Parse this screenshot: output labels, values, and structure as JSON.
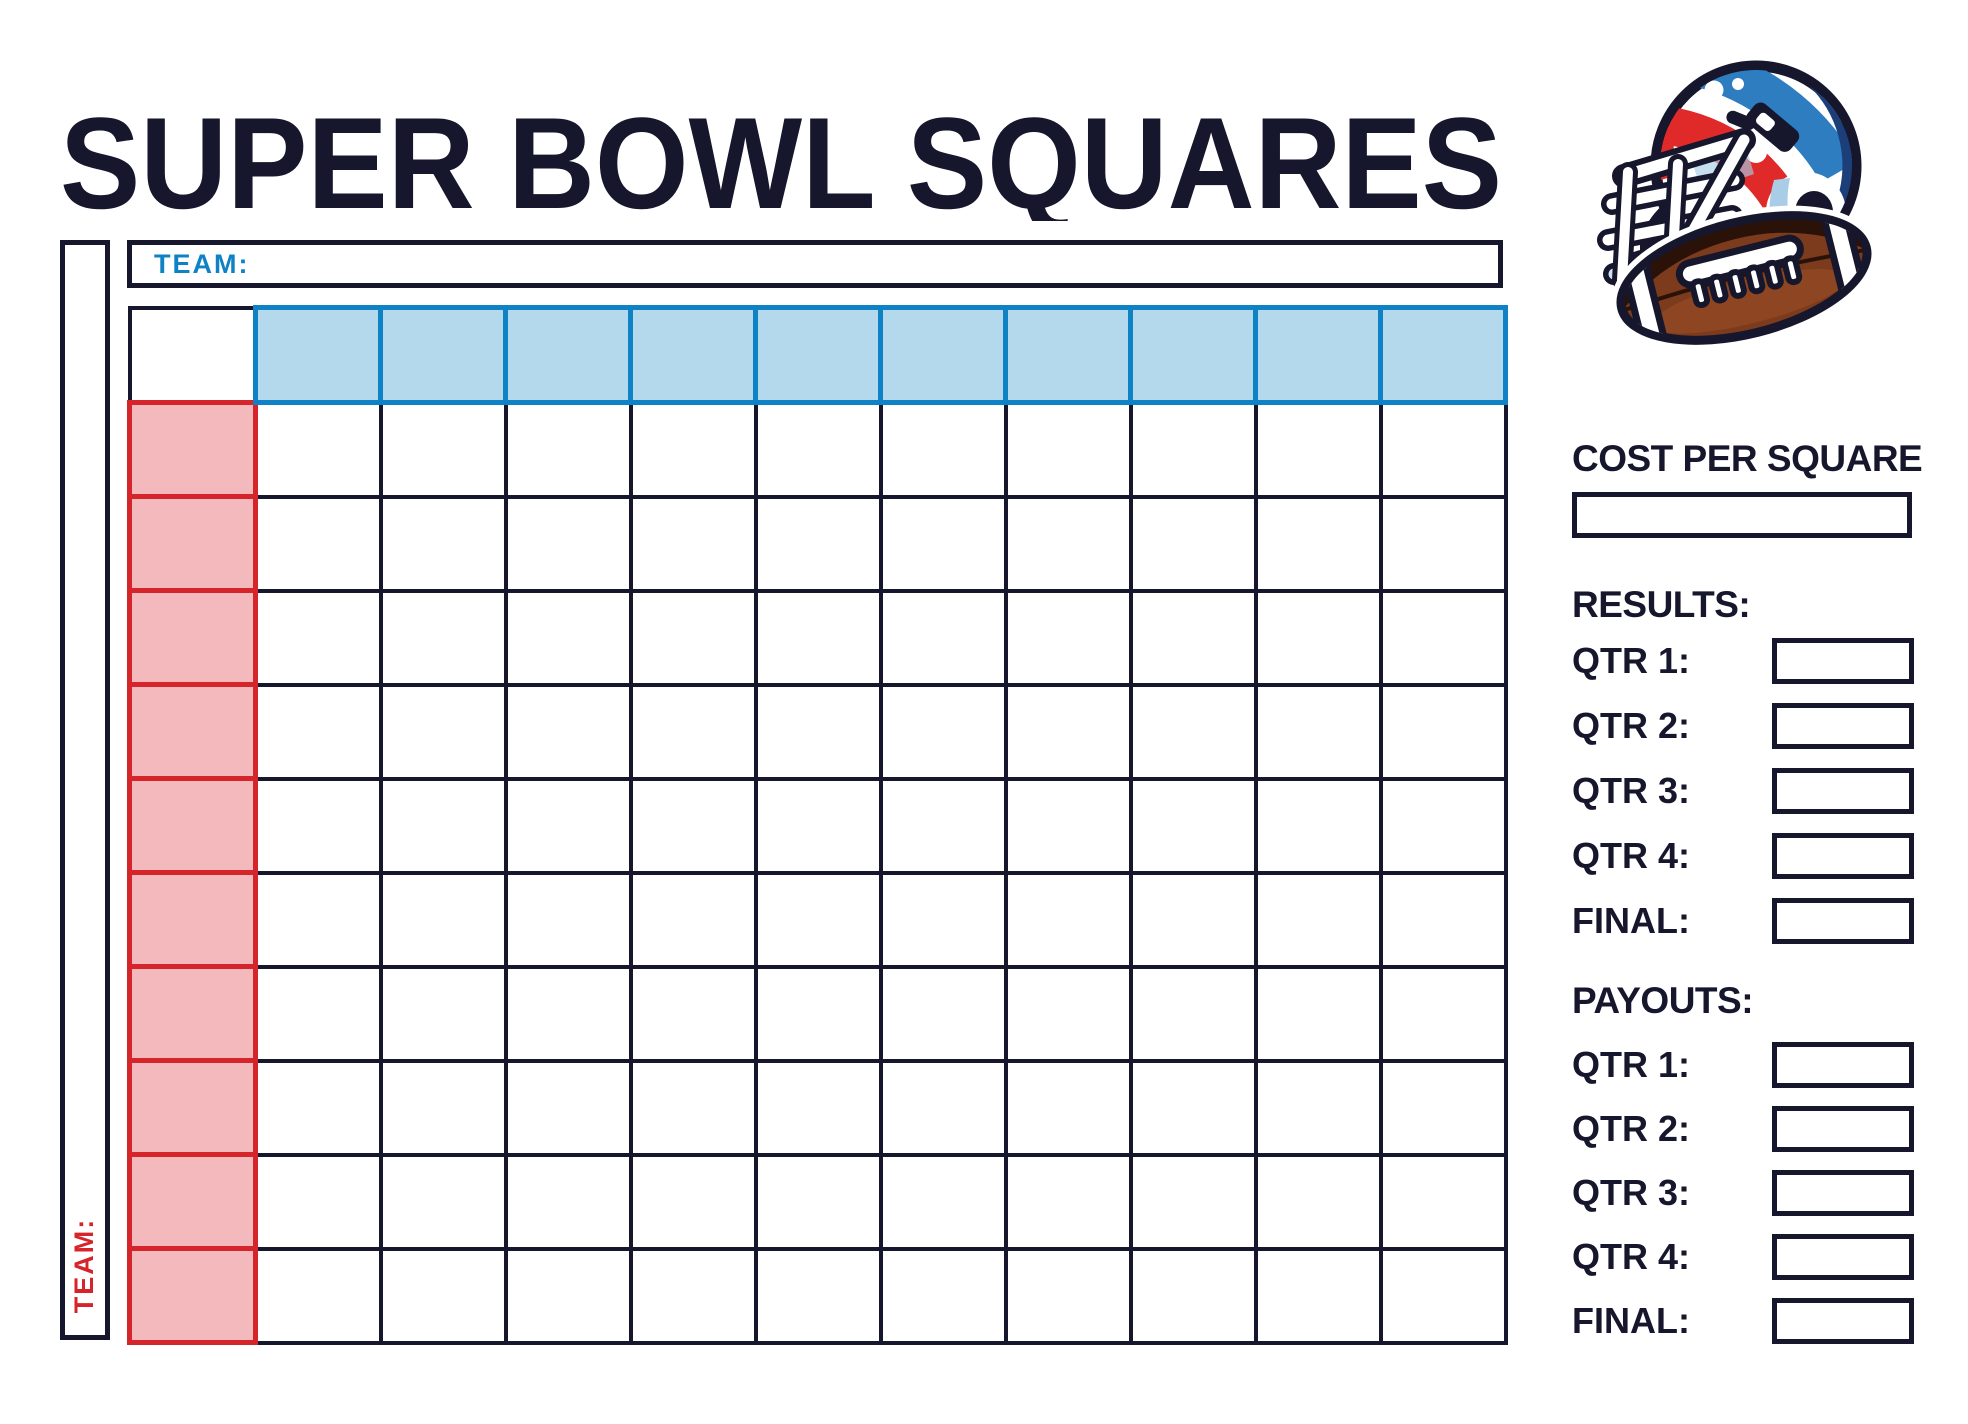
{
  "title": "SUPER BOWL SQUARES",
  "top_team_label": "TEAM:",
  "left_team_label": "TEAM:",
  "grid": {
    "rows": 11,
    "cols": 11,
    "description": "10x10 squares pool grid with blank blue column-number header row and blank red row-number header column"
  },
  "sidebar": {
    "cost_heading": "COST PER SQUARE",
    "cost_value": "",
    "results_heading": "RESULTS:",
    "results_rows": [
      {
        "label": "QTR 1:",
        "value": ""
      },
      {
        "label": "QTR 2:",
        "value": ""
      },
      {
        "label": "QTR 3:",
        "value": ""
      },
      {
        "label": "QTR 4:",
        "value": ""
      },
      {
        "label": "FINAL:",
        "value": ""
      }
    ],
    "payouts_heading": "PAYOUTS:",
    "payouts_rows": [
      {
        "label": "QTR 1:",
        "value": ""
      },
      {
        "label": "QTR 2:",
        "value": ""
      },
      {
        "label": "QTR 3:",
        "value": ""
      },
      {
        "label": "QTR 4:",
        "value": ""
      },
      {
        "label": "FINAL:",
        "value": ""
      }
    ]
  },
  "icons": {
    "helmet": "football-helmet-with-football-illustration"
  },
  "colors": {
    "navy": "#16162d",
    "blue": "#0e82c4",
    "blue_fill": "#b5d9ec",
    "red": "#d6242b",
    "red_fill": "#f4b9bc",
    "helmet_red": "#e02a2a",
    "helmet_blue": "#2e7dc1",
    "helmet_dark_blue": "#1c3f7a",
    "helmet_light_blue": "#a9cde6",
    "ball_brown": "#7c3b1c",
    "ball_dark": "#2a1209",
    "ball_light": "#9c4f26"
  }
}
